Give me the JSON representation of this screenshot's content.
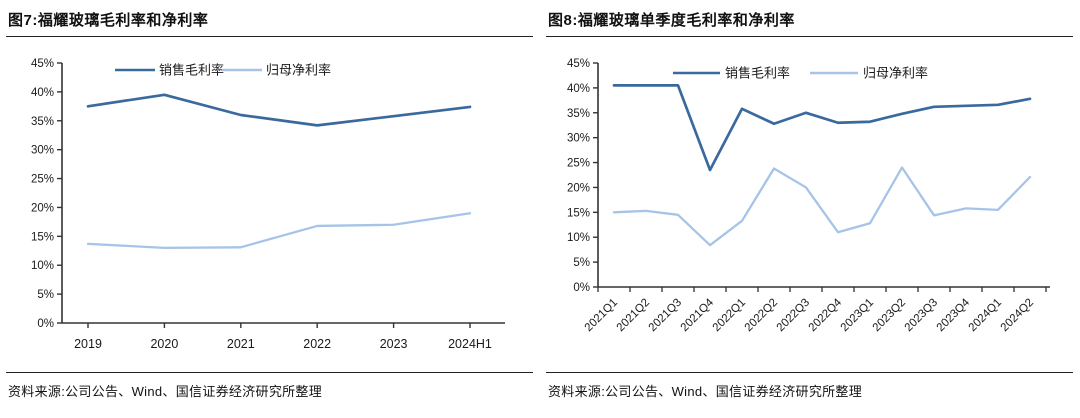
{
  "figures": [
    {
      "title": "图7:福耀玻璃毛利率和净利率",
      "source": "资料来源:公司公告、Wind、国信证券经济研究所整理"
    },
    {
      "title": "图8:福耀玻璃单季度毛利率和净利率",
      "source": "资料来源:公司公告、Wind、国信证券经济研究所整理"
    }
  ],
  "colors": {
    "gross_margin_line": "#3A699E",
    "net_margin_line": "#A6C4E7",
    "axis": "#333333",
    "label_text": "#1a1a1a"
  },
  "chart_data": [
    {
      "type": "line",
      "title": "图7:福耀玻璃毛利率和净利率",
      "categories": [
        "2019",
        "2020",
        "2021",
        "2022",
        "2023",
        "2024H1"
      ],
      "series": [
        {
          "name": "销售毛利率",
          "color_key": "gross_margin_line",
          "values": [
            37.5,
            39.5,
            36.0,
            34.2,
            35.8,
            37.4
          ]
        },
        {
          "name": "归母净利率",
          "color_key": "net_margin_line",
          "values": [
            13.7,
            13.0,
            13.1,
            16.8,
            17.0,
            19.0
          ]
        }
      ],
      "ylim": [
        0,
        45
      ],
      "ytick_step": 5,
      "ytick_labels": [
        "0%",
        "5%",
        "10%",
        "15%",
        "20%",
        "25%",
        "30%",
        "35%",
        "40%",
        "45%"
      ],
      "legend_position": "top",
      "grid": false,
      "x_label_rotation": 0
    },
    {
      "type": "line",
      "title": "图8:福耀玻璃单季度毛利率和净利率",
      "categories": [
        "2021Q1",
        "2021Q2",
        "2021Q3",
        "2021Q4",
        "2022Q1",
        "2022Q2",
        "2022Q3",
        "2022Q4",
        "2023Q1",
        "2023Q2",
        "2023Q3",
        "2023Q4",
        "2024Q1",
        "2024Q2"
      ],
      "series": [
        {
          "name": "销售毛利率",
          "color_key": "gross_margin_line",
          "values": [
            40.5,
            40.5,
            40.5,
            23.5,
            35.8,
            32.8,
            35.0,
            33.0,
            33.2,
            34.8,
            36.2,
            36.4,
            36.6,
            37.8
          ]
        },
        {
          "name": "归母净利率",
          "color_key": "net_margin_line",
          "values": [
            15.0,
            15.3,
            14.5,
            8.4,
            13.3,
            23.8,
            20.0,
            11.0,
            12.8,
            24.0,
            14.4,
            15.8,
            15.5,
            22.1
          ]
        }
      ],
      "ylim": [
        0,
        45
      ],
      "ytick_step": 5,
      "ytick_labels": [
        "0%",
        "5%",
        "10%",
        "15%",
        "20%",
        "25%",
        "30%",
        "35%",
        "40%",
        "45%"
      ],
      "legend_position": "top",
      "grid": false,
      "x_label_rotation": 45
    }
  ]
}
